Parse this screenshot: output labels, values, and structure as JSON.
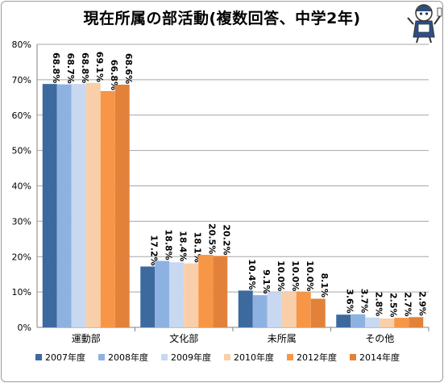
{
  "chart_data": {
    "type": "bar",
    "title": "現在所属の部活動(複数回答、中学2年)",
    "categories": [
      "運動部",
      "文化部",
      "未所属",
      "その他"
    ],
    "ylim": [
      0,
      80
    ],
    "y_ticks": [
      "0%",
      "10%",
      "20%",
      "30%",
      "40%",
      "50%",
      "60%",
      "70%",
      "80%"
    ],
    "grid": true,
    "legend_position": "bottom",
    "series": [
      {
        "name": "2007年度",
        "color": "#3d6a9e",
        "values": [
          68.8,
          17.2,
          10.4,
          3.6
        ],
        "labels": [
          "68.8%",
          "17.2%",
          "10.4%",
          "3.6%"
        ]
      },
      {
        "name": "2008年度",
        "color": "#8db2e2",
        "values": [
          68.7,
          18.8,
          9.1,
          3.7
        ],
        "labels": [
          "68.7%",
          "18.8%",
          "9.1%",
          "3.7%"
        ]
      },
      {
        "name": "2009年度",
        "color": "#c8d8f0",
        "values": [
          68.8,
          18.4,
          10.0,
          2.8
        ],
        "labels": [
          "68.8%",
          "18.4%",
          "10.0%",
          "2.8%"
        ]
      },
      {
        "name": "2010年度",
        "color": "#f9cfaa",
        "values": [
          69.1,
          18.1,
          10.0,
          2.5
        ],
        "labels": [
          "69.1%",
          "18.1%",
          "10.0%",
          "2.5%"
        ]
      },
      {
        "name": "2012年度",
        "color": "#f79646",
        "values": [
          66.8,
          20.5,
          10.0,
          2.7
        ],
        "labels": [
          "66.8%",
          "20.5%",
          "10.0%",
          "2.7%"
        ]
      },
      {
        "name": "2014年度",
        "color": "#e2823a",
        "values": [
          68.6,
          20.2,
          8.1,
          2.9
        ],
        "labels": [
          "68.6%",
          "20.2%",
          "8.1%",
          "2.9%"
        ]
      }
    ]
  }
}
